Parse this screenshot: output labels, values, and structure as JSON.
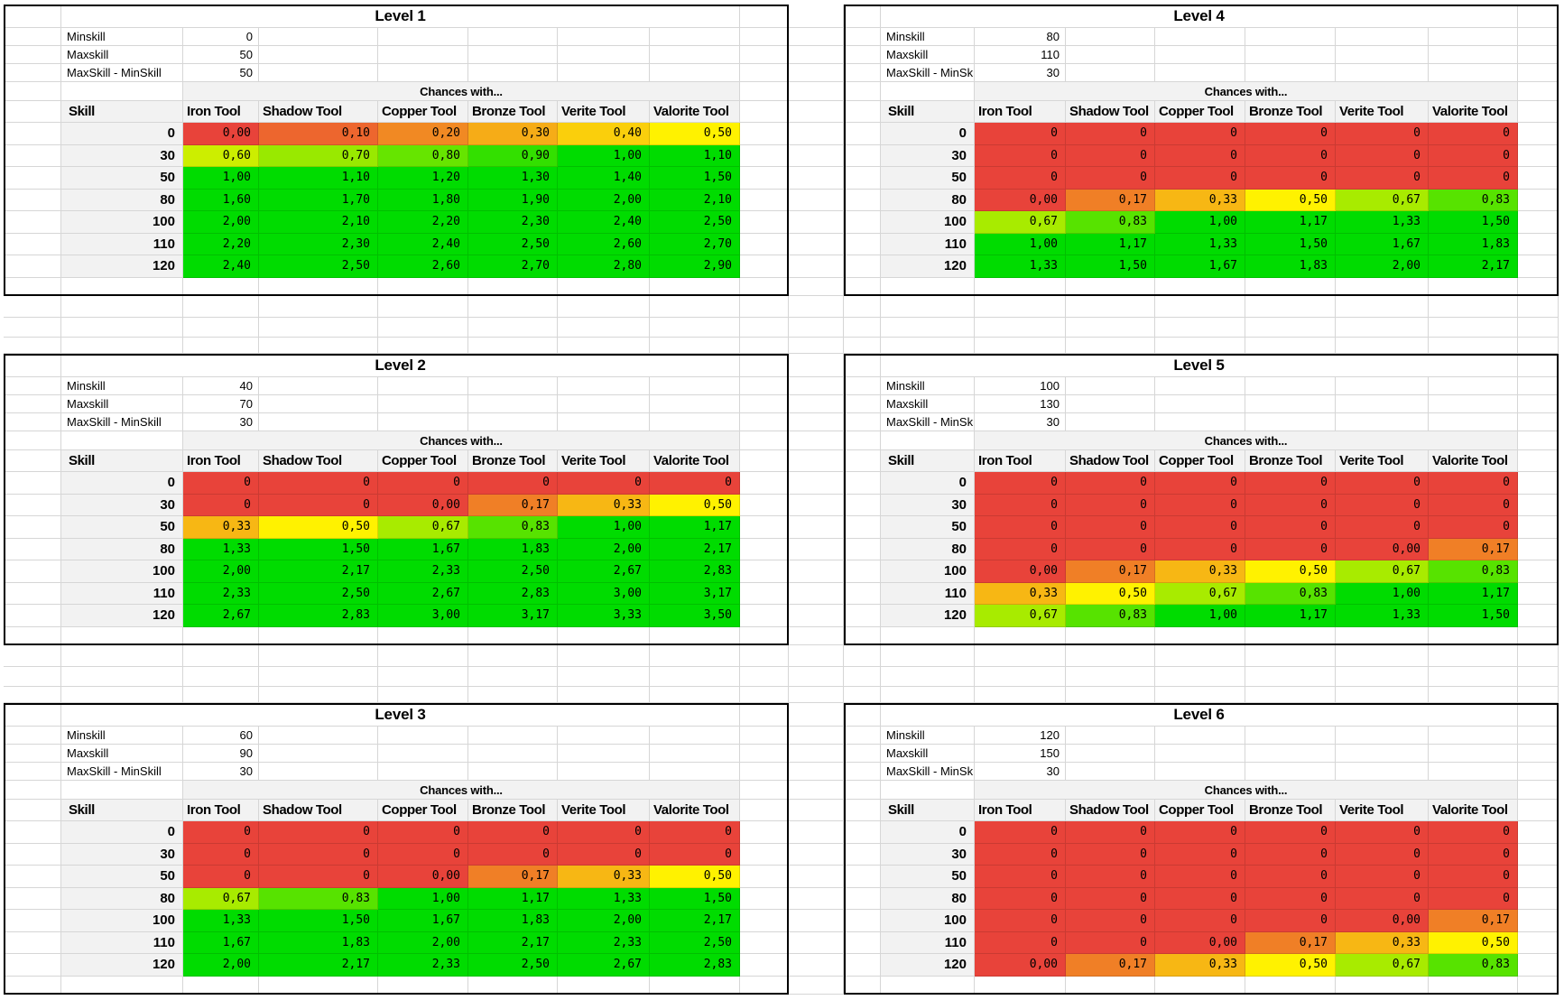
{
  "colors": {
    "cell_scale": {
      "red": "#E8433A",
      "yellow": "#FFF200",
      "green": "#00DC00"
    },
    "grid_line": "#D6D6D6",
    "header_bg": "#F2F2F2",
    "box_border": "#000000"
  },
  "shared": {
    "info_labels": [
      "Minskill",
      "Maxskill",
      "MaxSkill - MinSkill"
    ],
    "chances_label": "Chances with...",
    "skill_header": "Skill",
    "tool_headers": [
      "Iron Tool",
      "Shadow Tool",
      "Copper Tool",
      "Bronze Tool",
      "Verite Tool",
      "Valorite Tool"
    ],
    "skill_values": [
      "0",
      "30",
      "50",
      "80",
      "100",
      "110",
      "120"
    ]
  },
  "tables": [
    {
      "title": "Level 1",
      "minskill": "0",
      "maxskill": "50",
      "skill_diff": "50",
      "rows": [
        [
          "0,00",
          "0,10",
          "0,20",
          "0,30",
          "0,40",
          "0,50"
        ],
        [
          "0,60",
          "0,70",
          "0,80",
          "0,90",
          "1,00",
          "1,10"
        ],
        [
          "1,00",
          "1,10",
          "1,20",
          "1,30",
          "1,40",
          "1,50"
        ],
        [
          "1,60",
          "1,70",
          "1,80",
          "1,90",
          "2,00",
          "2,10"
        ],
        [
          "2,00",
          "2,10",
          "2,20",
          "2,30",
          "2,40",
          "2,50"
        ],
        [
          "2,20",
          "2,30",
          "2,40",
          "2,50",
          "2,60",
          "2,70"
        ],
        [
          "2,40",
          "2,50",
          "2,60",
          "2,70",
          "2,80",
          "2,90"
        ]
      ]
    },
    {
      "title": "Level 2",
      "minskill": "40",
      "maxskill": "70",
      "skill_diff": "30",
      "rows": [
        [
          "0",
          "0",
          "0",
          "0",
          "0",
          "0"
        ],
        [
          "0",
          "0",
          "0,00",
          "0,17",
          "0,33",
          "0,50"
        ],
        [
          "0,33",
          "0,50",
          "0,67",
          "0,83",
          "1,00",
          "1,17"
        ],
        [
          "1,33",
          "1,50",
          "1,67",
          "1,83",
          "2,00",
          "2,17"
        ],
        [
          "2,00",
          "2,17",
          "2,33",
          "2,50",
          "2,67",
          "2,83"
        ],
        [
          "2,33",
          "2,50",
          "2,67",
          "2,83",
          "3,00",
          "3,17"
        ],
        [
          "2,67",
          "2,83",
          "3,00",
          "3,17",
          "3,33",
          "3,50"
        ]
      ]
    },
    {
      "title": "Level 3",
      "minskill": "60",
      "maxskill": "90",
      "skill_diff": "30",
      "rows": [
        [
          "0",
          "0",
          "0",
          "0",
          "0",
          "0"
        ],
        [
          "0",
          "0",
          "0",
          "0",
          "0",
          "0"
        ],
        [
          "0",
          "0",
          "0,00",
          "0,17",
          "0,33",
          "0,50"
        ],
        [
          "0,67",
          "0,83",
          "1,00",
          "1,17",
          "1,33",
          "1,50"
        ],
        [
          "1,33",
          "1,50",
          "1,67",
          "1,83",
          "2,00",
          "2,17"
        ],
        [
          "1,67",
          "1,83",
          "2,00",
          "2,17",
          "2,33",
          "2,50"
        ],
        [
          "2,00",
          "2,17",
          "2,33",
          "2,50",
          "2,67",
          "2,83"
        ]
      ]
    },
    {
      "title": "Level 4",
      "minskill": "80",
      "maxskill": "110",
      "skill_diff": "30",
      "rows": [
        [
          "0",
          "0",
          "0",
          "0",
          "0",
          "0"
        ],
        [
          "0",
          "0",
          "0",
          "0",
          "0",
          "0"
        ],
        [
          "0",
          "0",
          "0",
          "0",
          "0",
          "0"
        ],
        [
          "0,00",
          "0,17",
          "0,33",
          "0,50",
          "0,67",
          "0,83"
        ],
        [
          "0,67",
          "0,83",
          "1,00",
          "1,17",
          "1,33",
          "1,50"
        ],
        [
          "1,00",
          "1,17",
          "1,33",
          "1,50",
          "1,67",
          "1,83"
        ],
        [
          "1,33",
          "1,50",
          "1,67",
          "1,83",
          "2,00",
          "2,17"
        ]
      ]
    },
    {
      "title": "Level 5",
      "minskill": "100",
      "maxskill": "130",
      "skill_diff": "30",
      "rows": [
        [
          "0",
          "0",
          "0",
          "0",
          "0",
          "0"
        ],
        [
          "0",
          "0",
          "0",
          "0",
          "0",
          "0"
        ],
        [
          "0",
          "0",
          "0",
          "0",
          "0",
          "0"
        ],
        [
          "0",
          "0",
          "0",
          "0",
          "0,00",
          "0,17"
        ],
        [
          "0,00",
          "0,17",
          "0,33",
          "0,50",
          "0,67",
          "0,83"
        ],
        [
          "0,33",
          "0,50",
          "0,67",
          "0,83",
          "1,00",
          "1,17"
        ],
        [
          "0,67",
          "0,83",
          "1,00",
          "1,17",
          "1,33",
          "1,50"
        ]
      ]
    },
    {
      "title": "Level 6",
      "minskill": "120",
      "maxskill": "150",
      "skill_diff": "30",
      "rows": [
        [
          "0",
          "0",
          "0",
          "0",
          "0",
          "0"
        ],
        [
          "0",
          "0",
          "0",
          "0",
          "0",
          "0"
        ],
        [
          "0",
          "0",
          "0",
          "0",
          "0",
          "0"
        ],
        [
          "0",
          "0",
          "0",
          "0",
          "0",
          "0"
        ],
        [
          "0",
          "0",
          "0",
          "0",
          "0,00",
          "0,17"
        ],
        [
          "0",
          "0",
          "0,00",
          "0,17",
          "0,33",
          "0,50"
        ],
        [
          "0,00",
          "0,17",
          "0,33",
          "0,50",
          "0,67",
          "0,83"
        ]
      ]
    }
  ]
}
